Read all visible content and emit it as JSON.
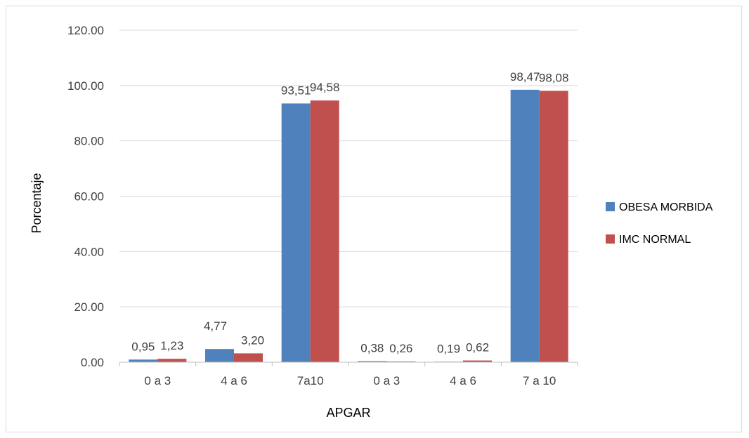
{
  "chart_data": {
    "type": "bar",
    "categories": [
      "0 a 3",
      "4 a 6",
      "7a10",
      "0 a 3",
      "4 a 6",
      "7 a 10"
    ],
    "series": [
      {
        "name": "OBESA MORBIDA",
        "color": "#4F81BD",
        "values": [
          0.95,
          4.77,
          93.51,
          0.38,
          0.19,
          98.47
        ],
        "labels": [
          "0,95",
          "4,77",
          "93,51",
          "0,38",
          "0,19",
          "98,47"
        ]
      },
      {
        "name": "IMC NORMAL",
        "color": "#C0504D",
        "values": [
          1.23,
          3.2,
          94.58,
          0.26,
          0.62,
          98.08
        ],
        "labels": [
          "1,23",
          "3,20",
          "94,58",
          "0,26",
          "0,62",
          "98,08"
        ]
      }
    ],
    "xlabel": "APGAR",
    "ylabel": "Porcentaje",
    "ylim": [
      0,
      120
    ],
    "yticks": [
      "0.00",
      "20.00",
      "40.00",
      "60.00",
      "80.00",
      "100.00",
      "120.00"
    ],
    "grid": true,
    "legend_position": "right"
  }
}
